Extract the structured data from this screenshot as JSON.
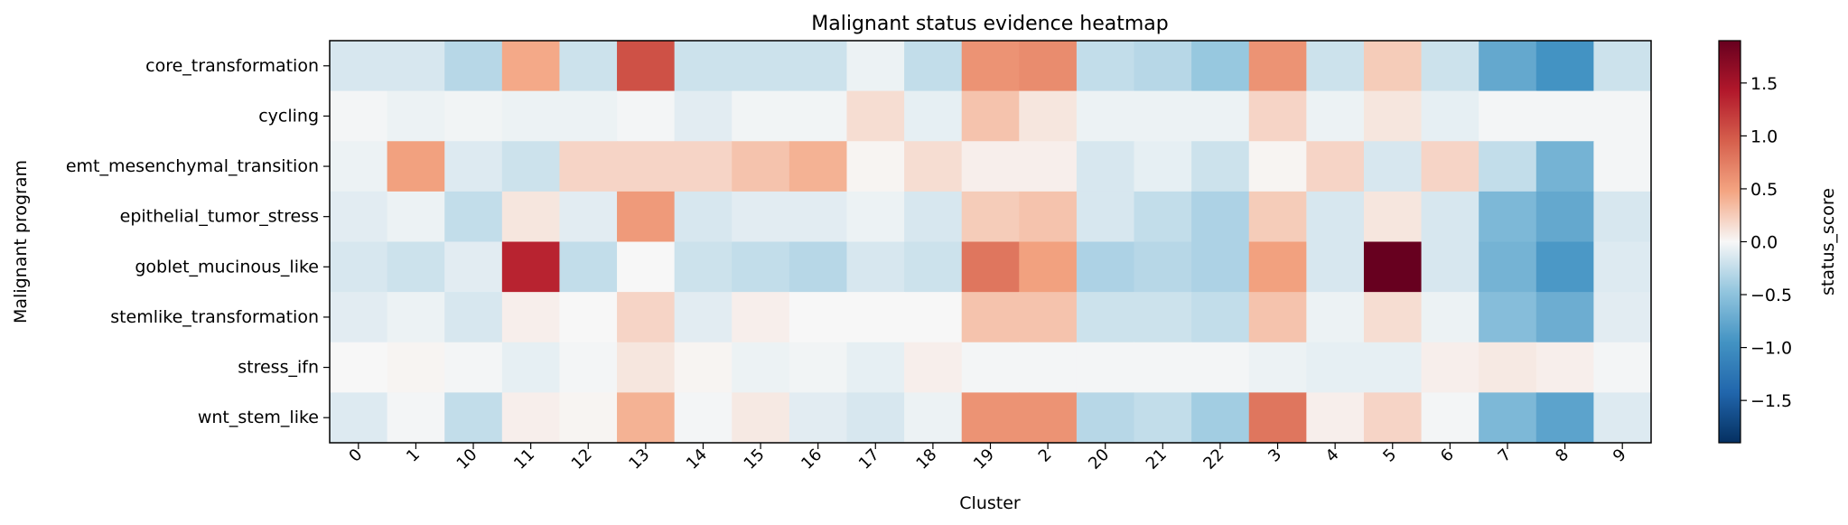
{
  "chart_data": {
    "type": "heatmap",
    "title": "Malignant status evidence heatmap",
    "xlabel": "Cluster",
    "ylabel": "Malignant program",
    "colorbar_label": "status_score",
    "colormap": "RdBu_r",
    "vmin": -1.9,
    "vmax": 1.9,
    "colorbar_ticks": [
      -1.5,
      -1.0,
      -0.5,
      0.0,
      0.5,
      1.0,
      1.5
    ],
    "colorbar_tick_labels": [
      "−1.5",
      "−1.0",
      "−0.5",
      "0.0",
      "0.5",
      "1.0",
      "1.5"
    ],
    "x": [
      "0",
      "1",
      "10",
      "11",
      "12",
      "13",
      "14",
      "15",
      "16",
      "17",
      "18",
      "19",
      "2",
      "20",
      "21",
      "22",
      "3",
      "4",
      "5",
      "6",
      "7",
      "8",
      "9"
    ],
    "y": [
      "core_transformation",
      "cycling",
      "emt_mesenchymal_transition",
      "epithelial_tumor_stress",
      "goblet_mucinous_like",
      "stemlike_transformation",
      "stress_ifn",
      "wnt_stem_like"
    ],
    "z": [
      [
        -0.15,
        -0.15,
        -0.3,
        0.45,
        -0.2,
        1.05,
        -0.2,
        -0.2,
        -0.2,
        -0.05,
        -0.25,
        0.6,
        0.65,
        -0.25,
        -0.3,
        -0.45,
        0.6,
        -0.2,
        0.25,
        -0.2,
        -0.75,
        -0.95,
        -0.2
      ],
      [
        -0.02,
        -0.05,
        -0.03,
        -0.05,
        -0.05,
        -0.02,
        -0.1,
        -0.03,
        -0.03,
        0.15,
        -0.08,
        0.3,
        0.1,
        -0.05,
        -0.05,
        -0.05,
        0.2,
        -0.05,
        0.1,
        -0.08,
        -0.02,
        -0.02,
        -0.02
      ],
      [
        -0.05,
        0.5,
        -0.12,
        -0.2,
        0.2,
        0.2,
        0.2,
        0.3,
        0.4,
        0.02,
        0.15,
        0.05,
        0.05,
        -0.15,
        -0.08,
        -0.2,
        0.02,
        0.2,
        -0.15,
        0.2,
        -0.25,
        -0.65,
        -0.02
      ],
      [
        -0.1,
        -0.05,
        -0.25,
        0.1,
        -0.1,
        0.55,
        -0.15,
        -0.1,
        -0.1,
        -0.05,
        -0.15,
        0.25,
        0.3,
        -0.15,
        -0.25,
        -0.35,
        0.25,
        -0.15,
        0.1,
        -0.15,
        -0.6,
        -0.75,
        -0.15
      ],
      [
        -0.15,
        -0.2,
        -0.1,
        1.35,
        -0.25,
        0.0,
        -0.2,
        -0.25,
        -0.3,
        -0.15,
        -0.2,
        0.8,
        0.5,
        -0.35,
        -0.3,
        -0.35,
        0.5,
        -0.15,
        1.9,
        -0.15,
        -0.65,
        -0.9,
        -0.12
      ],
      [
        -0.1,
        -0.05,
        -0.15,
        0.05,
        0.0,
        0.2,
        -0.1,
        0.05,
        0.0,
        0.0,
        0.0,
        0.3,
        0.3,
        -0.2,
        -0.2,
        -0.25,
        0.3,
        -0.05,
        0.15,
        -0.05,
        -0.55,
        -0.7,
        -0.1
      ],
      [
        0.0,
        0.02,
        -0.02,
        -0.08,
        -0.02,
        0.1,
        0.02,
        -0.05,
        -0.03,
        -0.08,
        0.05,
        -0.02,
        -0.02,
        -0.02,
        -0.02,
        -0.02,
        -0.05,
        -0.08,
        -0.08,
        0.05,
        0.08,
        0.05,
        -0.02
      ],
      [
        -0.12,
        -0.02,
        -0.25,
        0.05,
        0.02,
        0.4,
        -0.02,
        0.08,
        -0.1,
        -0.15,
        -0.05,
        0.6,
        0.6,
        -0.3,
        -0.25,
        -0.4,
        0.8,
        0.05,
        0.2,
        -0.02,
        -0.6,
        -0.8,
        -0.12
      ]
    ]
  }
}
